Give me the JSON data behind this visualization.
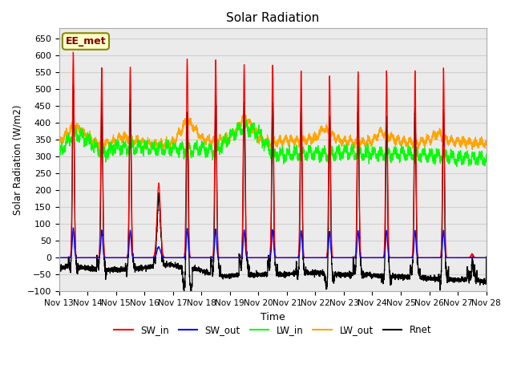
{
  "title": "Solar Radiation",
  "xlabel": "Time",
  "ylabel": "Solar Radiation (W/m2)",
  "ylim": [
    -100,
    680
  ],
  "yticks": [
    -100,
    -50,
    0,
    50,
    100,
    150,
    200,
    250,
    300,
    350,
    400,
    450,
    500,
    550,
    600,
    650
  ],
  "xstart": 13,
  "xend": 28,
  "xtick_labels": [
    "Nov 13",
    "Nov 14",
    "Nov 15",
    "Nov 16",
    "Nov 17",
    "Nov 18",
    "Nov 19",
    "Nov 20",
    "Nov 21",
    "Nov 22",
    "Nov 23",
    "Nov 24",
    "Nov 25",
    "Nov 26",
    "Nov 27",
    "Nov 28"
  ],
  "colors": {
    "SW_in": "#ff0000",
    "SW_out": "#0000ff",
    "LW_in": "#00ff00",
    "LW_out": "#ffa500",
    "Rnet": "#000000"
  },
  "legend_label_box": "EE_met",
  "background_color": "#ffffff",
  "grid_color": "#d0d0d0",
  "ax_bg_color": "#ebebeb"
}
